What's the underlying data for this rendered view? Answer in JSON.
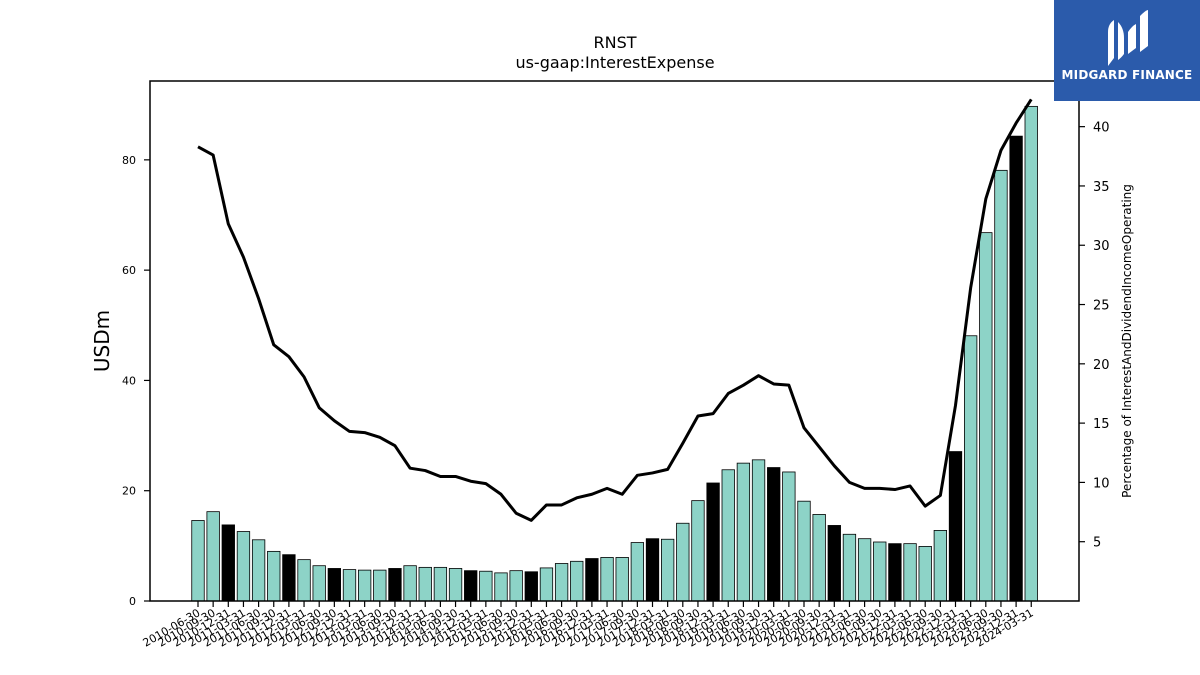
{
  "chart_data": {
    "type": "bar+line",
    "title": "RNST",
    "subtitle": "us-gaap:InterestExpense",
    "ylabel": "USDm",
    "y2label": "Percentage of InterestAndDividendIncomeOperating",
    "ylim": [
      0,
      94.3
    ],
    "y2lim": [
      0,
      43.85
    ],
    "yticks": [
      0,
      20,
      40,
      60,
      80
    ],
    "y2ticks": [
      5,
      10,
      15,
      20,
      25,
      30,
      35,
      40
    ],
    "categories": [
      "2010-06-30",
      "2010-09-30",
      "2010-12-31",
      "2011-03-31",
      "2011-06-30",
      "2011-09-30",
      "2011-12-31",
      "2012-03-31",
      "2012-06-30",
      "2012-09-30",
      "2012-12-31",
      "2013-03-31",
      "2013-06-30",
      "2013-09-30",
      "2013-12-31",
      "2014-03-31",
      "2014-06-30",
      "2014-09-30",
      "2014-12-31",
      "2015-03-31",
      "2015-06-30",
      "2015-09-30",
      "2015-12-31",
      "2016-03-31",
      "2016-06-30",
      "2016-09-30",
      "2016-12-31",
      "2017-03-31",
      "2017-06-30",
      "2017-09-30",
      "2017-12-31",
      "2018-03-31",
      "2018-06-30",
      "2018-09-30",
      "2018-12-31",
      "2019-03-31",
      "2019-06-30",
      "2019-09-30",
      "2019-12-31",
      "2020-03-31",
      "2020-06-30",
      "2020-09-30",
      "2020-12-31",
      "2021-03-31",
      "2021-06-30",
      "2021-09-30",
      "2021-12-31",
      "2022-03-31",
      "2022-06-30",
      "2022-09-30",
      "2022-12-31",
      "2023-03-31",
      "2023-06-30",
      "2023-09-30",
      "2023-12-31",
      "2024-03-31"
    ],
    "tick_labels": [
      "2010-06-30",
      "2010-09-30",
      "2010-12-31",
      "2011-03-31",
      "2011-06-30",
      "2011-09-30",
      "2011-12-31",
      "2012-03-31",
      "2012-06-30",
      "2012-09-30",
      "2012-12-31",
      "2013-03-31",
      "2013-06-30",
      "2013-09-30",
      "2013-12-31",
      "2014-03-31",
      "2014-06-30",
      "2014-09-30",
      "2014-12-31",
      "2015-03-31",
      "2015-06-30",
      "2015-09-30",
      "2015-12-31",
      "2016-03-31",
      "2016-06-30",
      "2016-09-30",
      "2016-12-31",
      "2017-03-31",
      "2017-06-30",
      "2017-09-30",
      "2017-12-31",
      "2018-03-31",
      "2018-06-30",
      "2018-09-30",
      "2018-12-31",
      "2019-03-31",
      "2019-06-30",
      "2019-09-30",
      "2019-12-31",
      "2020-03-31",
      "2020-06-30",
      "2020-09-30",
      "2020-12-31",
      "2021-03-31",
      "2021-06-30",
      "2021-09-30",
      "2021-12-31",
      "2022-03-31",
      "2022-06-30",
      "2022-09-30",
      "2022-12-31",
      "2023-03-31",
      "2023-06-30",
      "2023-09-30",
      "2023-12-31",
      "2024-03-31"
    ],
    "series": [
      {
        "type": "bar",
        "axis": "left",
        "values": [
          14.6,
          16.2,
          13.8,
          12.6,
          11.1,
          9.0,
          8.4,
          7.5,
          6.4,
          5.9,
          5.7,
          5.6,
          5.6,
          5.9,
          6.4,
          6.1,
          6.1,
          5.9,
          5.5,
          5.4,
          5.1,
          5.5,
          5.3,
          6.0,
          6.8,
          7.2,
          7.7,
          7.9,
          7.9,
          10.6,
          11.3,
          11.2,
          14.1,
          18.2,
          21.4,
          23.8,
          25.0,
          25.6,
          24.2,
          23.4,
          18.1,
          15.7,
          13.7,
          12.1,
          11.3,
          10.7,
          10.4,
          10.4,
          9.9,
          12.8,
          27.1,
          48.1,
          66.8,
          78.1,
          84.3,
          89.7
        ],
        "black_indices": [
          2,
          6,
          9,
          13,
          18,
          22,
          26,
          30,
          34,
          38,
          42,
          46,
          50,
          54
        ]
      },
      {
        "type": "line",
        "axis": "right",
        "values": [
          38.3,
          37.6,
          31.8,
          29.0,
          25.5,
          21.6,
          20.6,
          18.9,
          16.3,
          15.2,
          14.3,
          14.2,
          13.8,
          13.1,
          11.2,
          11.0,
          10.5,
          10.5,
          10.1,
          9.9,
          9.0,
          7.4,
          6.8,
          8.1,
          8.1,
          8.7,
          9.0,
          9.5,
          9.0,
          10.6,
          10.8,
          11.1,
          13.3,
          15.6,
          15.8,
          17.5,
          18.2,
          19.0,
          18.3,
          18.2,
          14.6,
          13.0,
          11.4,
          10.0,
          9.5,
          9.5,
          9.4,
          9.7,
          8.0,
          8.9,
          16.5,
          26.4,
          33.9,
          38.0,
          40.3,
          42.3
        ]
      }
    ],
    "colors": {
      "bar": "#8dd3c7",
      "bar_highlight": "#000000",
      "line": "#000000"
    }
  },
  "watermark": {
    "brand": "MIDGARD FINANCE"
  }
}
